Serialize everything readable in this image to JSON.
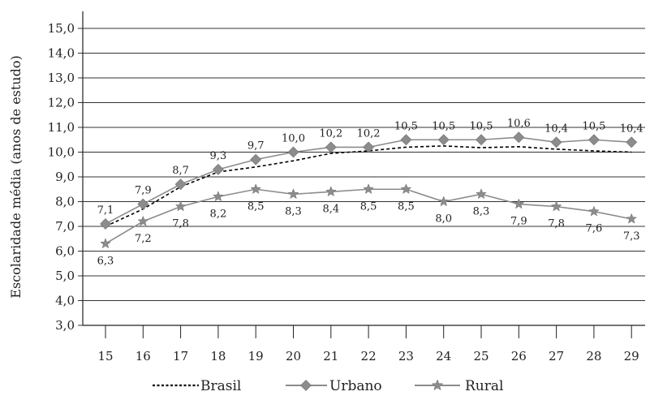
{
  "chart_data": {
    "type": "line",
    "ylabel": "Escolaridade média (anos de estudo)",
    "xlabel": "",
    "x": [
      15,
      16,
      17,
      18,
      19,
      20,
      21,
      22,
      23,
      24,
      25,
      26,
      27,
      28,
      29
    ],
    "ylim": [
      3.0,
      15.0
    ],
    "yticks": [
      "3,0",
      "4,0",
      "5,0",
      "6,0",
      "7,0",
      "8,0",
      "9,0",
      "10,0",
      "11,0",
      "12,0",
      "13,0",
      "14,0",
      "15,0"
    ],
    "grid": "horizontal",
    "legend_placement": "bottom",
    "series": [
      {
        "name": "Brasil",
        "style": "dashed",
        "color": "#000000",
        "values": [
          7.0,
          7.7,
          8.6,
          9.2,
          9.4,
          9.65,
          9.95,
          10.05,
          10.2,
          10.25,
          10.18,
          10.22,
          10.12,
          10.05,
          10.0
        ]
      },
      {
        "name": "Urbano",
        "marker": "diamond",
        "color": "#8c8c8c",
        "values": [
          7.1,
          7.9,
          8.7,
          9.3,
          9.7,
          10.0,
          10.2,
          10.2,
          10.5,
          10.5,
          10.5,
          10.6,
          10.4,
          10.5,
          10.4
        ],
        "data_labels": [
          "7,1",
          "7,9",
          "8,7",
          "9,3",
          "9,7",
          "10,0",
          "10,2",
          "10,2",
          "10,5",
          "10,5",
          "10,5",
          "10,6",
          "10,4",
          "10,5",
          "10,4"
        ]
      },
      {
        "name": "Rural",
        "marker": "star",
        "color": "#8c8c8c",
        "values": [
          6.3,
          7.2,
          7.8,
          8.2,
          8.5,
          8.3,
          8.4,
          8.5,
          8.5,
          8.0,
          8.3,
          7.9,
          7.8,
          7.6,
          7.3
        ],
        "data_labels": [
          "6,3",
          "7,2",
          "7,8",
          "8,2",
          "8,5",
          "8,3",
          "8,4",
          "8,5",
          "8,5",
          "8,0",
          "8,3",
          "7,9",
          "7,8",
          "7,6",
          "7,3"
        ]
      }
    ]
  }
}
